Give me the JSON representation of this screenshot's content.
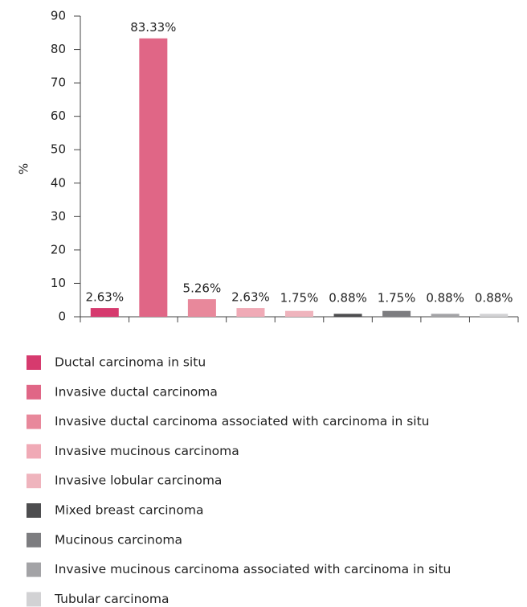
{
  "chart_data": {
    "type": "bar",
    "y_label": "%",
    "categories": [
      null,
      null,
      null,
      null,
      null,
      null,
      null,
      null,
      null
    ],
    "series": [
      {
        "name": "Ductal carcinoma in situ",
        "color": "#d63a6e",
        "values": [
          2.63,
          null,
          null,
          null,
          null,
          null,
          null,
          null,
          null
        ],
        "value_labels": [
          "2.63%",
          null,
          null,
          null,
          null,
          null,
          null,
          null,
          null
        ]
      },
      {
        "name": "Invasive ductal carcinoma",
        "color": "#e06686",
        "values": [
          null,
          83.33,
          null,
          null,
          null,
          null,
          null,
          null,
          null
        ],
        "value_labels": [
          null,
          "83.33%",
          null,
          null,
          null,
          null,
          null,
          null,
          null
        ]
      },
      {
        "name": "Invasive ductal carcinoma associated with carcinoma in situ",
        "color": "#e8889b",
        "values": [
          null,
          null,
          5.26,
          null,
          null,
          null,
          null,
          null,
          null
        ],
        "value_labels": [
          null,
          null,
          "5.26%",
          null,
          null,
          null,
          null,
          null,
          null
        ]
      },
      {
        "name": "Invasive mucinous carcinoma",
        "color": "#f0aab6",
        "values": [
          null,
          null,
          null,
          2.63,
          null,
          null,
          null,
          null,
          null
        ],
        "value_labels": [
          null,
          null,
          null,
          "2.63%",
          null,
          null,
          null,
          null,
          null
        ]
      },
      {
        "name": "Invasive lobular carcinoma",
        "color": "#efb4bd",
        "values": [
          null,
          null,
          null,
          null,
          1.75,
          null,
          null,
          null,
          null
        ],
        "value_labels": [
          null,
          null,
          null,
          null,
          "1.75%",
          null,
          null,
          null,
          null
        ]
      },
      {
        "name": "Mixed breast carcinoma",
        "color": "#4d4d4f",
        "values": [
          null,
          null,
          null,
          null,
          null,
          0.88,
          null,
          null,
          null
        ],
        "value_labels": [
          null,
          null,
          null,
          null,
          null,
          "0.88%",
          null,
          null,
          null
        ]
      },
      {
        "name": "Mucinous carcinoma",
        "color": "#7d7d80",
        "values": [
          null,
          null,
          null,
          null,
          null,
          null,
          1.75,
          null,
          null
        ],
        "value_labels": [
          null,
          null,
          null,
          null,
          null,
          null,
          "1.75%",
          null,
          null
        ]
      },
      {
        "name": "Invasive mucinous carcinoma associated with carcinoma in situ",
        "color": "#a3a3a6",
        "values": [
          null,
          null,
          null,
          null,
          null,
          null,
          null,
          0.88,
          null
        ],
        "value_labels": [
          null,
          null,
          null,
          null,
          null,
          null,
          null,
          "0.88%",
          null
        ]
      },
      {
        "name": "Tubular carcinoma",
        "color": "#d2d2d4",
        "values": [
          null,
          null,
          null,
          null,
          null,
          null,
          null,
          null,
          0.88
        ],
        "value_labels": [
          null,
          null,
          null,
          null,
          null,
          null,
          null,
          null,
          "0.88%"
        ]
      }
    ],
    "ylim": [
      0,
      90
    ],
    "yticks": [
      0,
      10,
      20,
      30,
      40,
      50,
      60,
      70,
      80,
      90
    ]
  }
}
